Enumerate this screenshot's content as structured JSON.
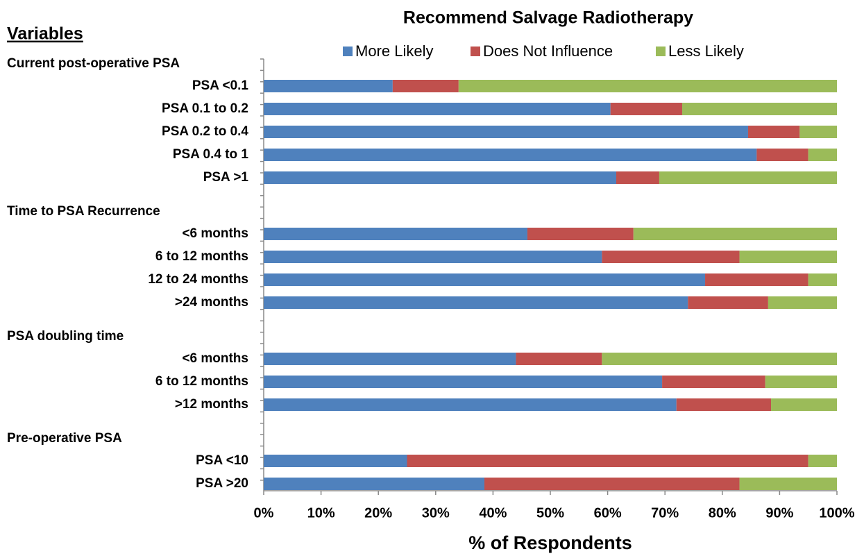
{
  "chart_data": {
    "type": "stacked-barh",
    "title": "Recommend Salvage Radiotherapy",
    "heading": "Variables",
    "xlabel": "% of Respondents",
    "groups": [
      {
        "label": "Current post-operative PSA",
        "categories": [
          "PSA <0.1",
          "PSA 0.1 to 0.2",
          "PSA 0.2 to 0.4",
          "PSA 0.4 to 1",
          "PSA >1"
        ]
      },
      {
        "label": "Time to PSA Recurrence",
        "categories": [
          "<6 months",
          "6 to 12 months",
          "12 to 24 months",
          ">24 months"
        ]
      },
      {
        "label": "PSA doubling time",
        "categories": [
          "<6 months",
          "6 to 12 months",
          ">12 months"
        ]
      },
      {
        "label": "Pre-operative PSA",
        "categories": [
          "PSA <10",
          "PSA >20"
        ]
      }
    ],
    "series": [
      {
        "name": "More Likely",
        "color": "#4f81bd",
        "values": [
          22.5,
          60.5,
          84.5,
          86,
          61.5,
          46,
          59,
          77,
          74,
          44,
          69.5,
          72,
          25,
          38.5
        ]
      },
      {
        "name": "Does Not Influence",
        "color": "#c0504d",
        "values": [
          11.5,
          12.5,
          9,
          9,
          7.5,
          18.5,
          24,
          18,
          14,
          15,
          18,
          16.5,
          70,
          44.5
        ]
      },
      {
        "name": "Less Likely",
        "color": "#9bbb59",
        "values": [
          66,
          27,
          6.5,
          5,
          31,
          35.5,
          17,
          5,
          12,
          41,
          12.5,
          11.5,
          5,
          17
        ]
      }
    ],
    "xlim": [
      0,
      100
    ],
    "xticks": [
      {
        "value": 0,
        "label": "0%"
      },
      {
        "value": 10,
        "label": "10%"
      },
      {
        "value": 20,
        "label": "20%"
      },
      {
        "value": 30,
        "label": "30%"
      },
      {
        "value": 40,
        "label": "40%"
      },
      {
        "value": 50,
        "label": "50%"
      },
      {
        "value": 60,
        "label": "60%"
      },
      {
        "value": 70,
        "label": "70%"
      },
      {
        "value": 80,
        "label": "80%"
      },
      {
        "value": 90,
        "label": "90%"
      },
      {
        "value": 100,
        "label": "100%"
      }
    ]
  }
}
